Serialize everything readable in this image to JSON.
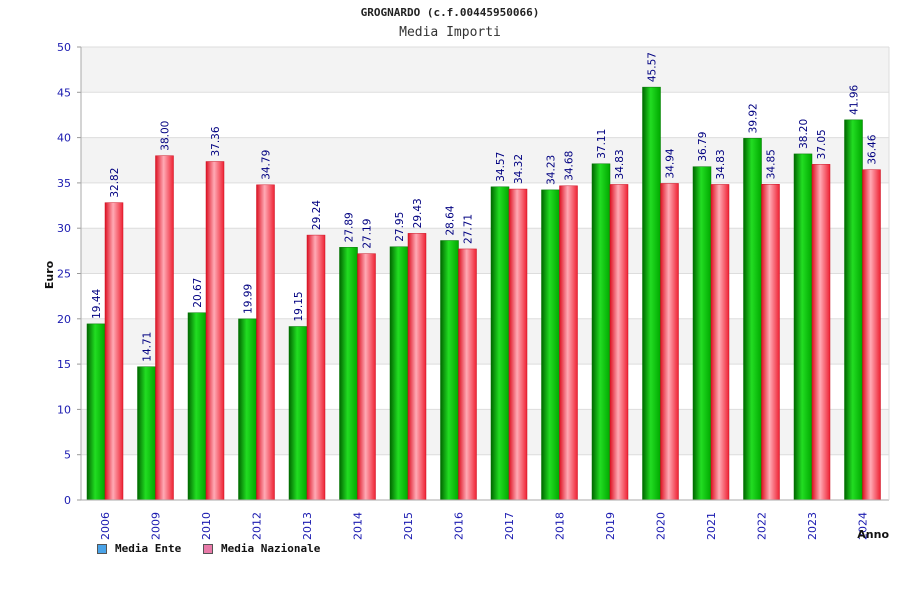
{
  "header": {
    "title": "GROGNARDO (c.f.00445950066)",
    "subtitle": "Media Importi"
  },
  "legend": {
    "ente_label": "Media Ente",
    "nazionale_label": "Media Nazionale"
  },
  "colors": {
    "ente_bar": "#00bb00",
    "nazionale_bar": "#ff3344",
    "ente_swatch": "#4aa3e8",
    "nazionale_swatch": "#e87aa8",
    "axis_text": "#1a1ab0",
    "label_text": "#000080"
  },
  "chart_data": {
    "type": "bar",
    "title": "GROGNARDO (c.f.00445950066)",
    "subtitle": "Media Importi",
    "xlabel": "Anno",
    "ylabel": "Euro",
    "ylim": [
      0,
      50
    ],
    "yticks": [
      0,
      5,
      10,
      15,
      20,
      25,
      30,
      35,
      40,
      45,
      50
    ],
    "grid": true,
    "legend_position": "bottom-left",
    "categories": [
      "2006",
      "2009",
      "2010",
      "2012",
      "2013",
      "2014",
      "2015",
      "2016",
      "2017",
      "2018",
      "2019",
      "2020",
      "2021",
      "2022",
      "2023",
      "2024"
    ],
    "series": [
      {
        "name": "Media Ente",
        "values": [
          19.44,
          14.71,
          20.67,
          19.99,
          19.15,
          27.89,
          27.95,
          28.64,
          34.57,
          34.23,
          37.11,
          45.57,
          36.79,
          39.92,
          38.2,
          41.96
        ],
        "labels": [
          "19.44",
          "14.71",
          "20.67",
          "19.99",
          "19.15",
          "27.89",
          "27.95",
          "28.64",
          "34.57",
          "34.23",
          "37.11",
          "45.57",
          "36.79",
          "39.92",
          "38.20",
          "41.96"
        ]
      },
      {
        "name": "Media Nazionale",
        "values": [
          32.82,
          38.0,
          37.36,
          34.79,
          29.24,
          27.19,
          29.43,
          27.71,
          34.32,
          34.68,
          34.83,
          34.94,
          34.83,
          34.85,
          37.05,
          36.46
        ],
        "labels": [
          "32.82",
          "38.00",
          "37.36",
          "34.79",
          "29.24",
          "27.19",
          "29.43",
          "27.71",
          "34.32",
          "34.68",
          "34.83",
          "34.94",
          "34.83",
          "34.85",
          "37.05",
          "36.46"
        ]
      }
    ]
  }
}
